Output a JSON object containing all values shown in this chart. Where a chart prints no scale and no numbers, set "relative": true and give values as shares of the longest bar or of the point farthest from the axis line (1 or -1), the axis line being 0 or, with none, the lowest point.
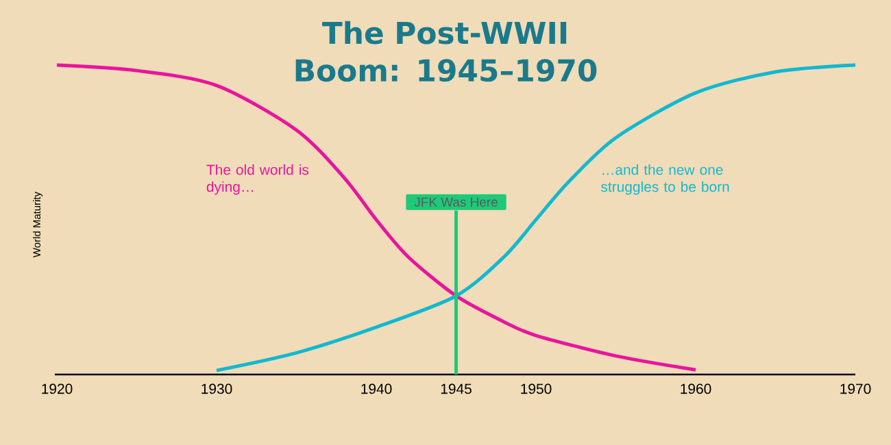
{
  "chart_data": {
    "type": "line",
    "title": "The Post-WWII Boom: 1945–1970",
    "ylabel": "World Maturity",
    "relative": true,
    "xlim": [
      1920,
      1970
    ],
    "xticks": [
      1920,
      1930,
      1940,
      1945,
      1950,
      1960,
      1970
    ],
    "series": [
      {
        "name": "The old world is dying…",
        "color": "#e8159e",
        "x": [
          1920,
          1925,
          1930,
          1935,
          1938,
          1940,
          1942,
          1945,
          1948,
          1950,
          1955,
          1960
        ],
        "values": [
          1.0,
          0.982,
          0.934,
          0.79,
          0.635,
          0.5,
          0.38,
          0.254,
          0.17,
          0.126,
          0.06,
          0.015
        ]
      },
      {
        "name": "…and the new one struggles to be born",
        "color": "#12b8d0",
        "x": [
          1930,
          1935,
          1940,
          1945,
          1948,
          1950,
          1952,
          1955,
          1960,
          1965,
          1970
        ],
        "values": [
          0.013,
          0.07,
          0.153,
          0.254,
          0.38,
          0.5,
          0.62,
          0.765,
          0.91,
          0.978,
          1.0
        ]
      }
    ],
    "ref_lines": [
      {
        "axis": "x",
        "value": 1945,
        "label": "JFK Was Here",
        "color": "#1fc97a"
      }
    ]
  }
}
